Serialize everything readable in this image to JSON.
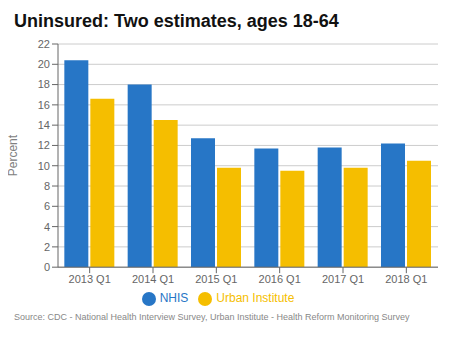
{
  "chart_data": {
    "type": "bar",
    "title": "Uninsured: Two estimates, ages 18-64",
    "categories": [
      "2013 Q1",
      "2014 Q1",
      "2015 Q1",
      "2016 Q1",
      "2017 Q1",
      "2018 Q1"
    ],
    "series": [
      {
        "name": "NHIS",
        "color": "#2776C6",
        "values": [
          20.4,
          18.0,
          12.7,
          11.7,
          11.8,
          12.2
        ]
      },
      {
        "name": "Urban Institute",
        "color": "#F5BE00",
        "values": [
          16.6,
          14.5,
          9.8,
          9.5,
          9.8,
          10.5
        ]
      }
    ],
    "ylabel": "Percent",
    "ylim": [
      0,
      22
    ],
    "yticks": [
      0,
      2,
      4,
      6,
      8,
      10,
      12,
      14,
      16,
      18,
      20,
      22
    ],
    "grid": true,
    "legend": "bottom",
    "annotations": [
      "Source: CDC - National Health Interview Survey, Urban Institute - Health Reform Monitoring Survey"
    ]
  }
}
